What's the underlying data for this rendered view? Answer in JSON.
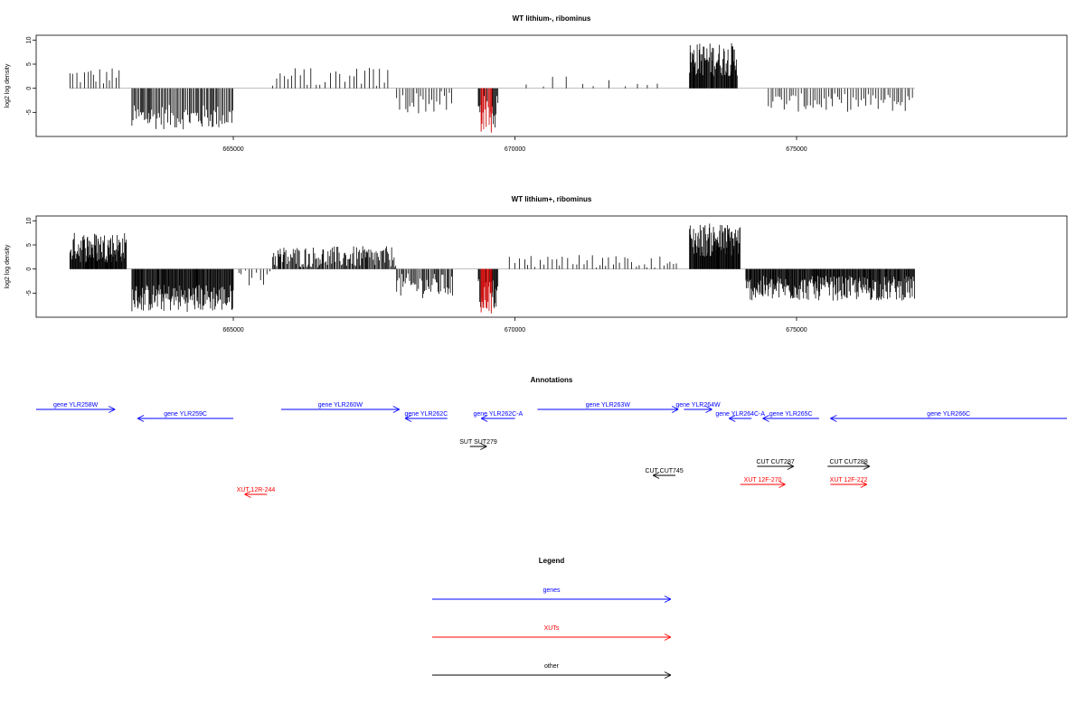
{
  "colors": {
    "gene": "#0000ff",
    "xut": "#ff0000",
    "other": "#000000",
    "highlight": "#cc0000",
    "baseline": "#999999"
  },
  "chart_data": [
    {
      "type": "bar",
      "title": "WT lithium-, ribominus",
      "ylabel": "log2 log density",
      "xlim": [
        661500,
        679800
      ],
      "ylim": [
        -10,
        11
      ],
      "x_ticks": [
        665000,
        670000,
        675000
      ],
      "x_tick_labels": [
        "665000",
        "670000",
        "675000"
      ],
      "y_ticks": [
        10,
        5,
        0,
        -5
      ],
      "y_tick_labels": [
        "10",
        "5",
        "0",
        "-5"
      ],
      "highlight_range": [
        669400,
        669600
      ],
      "segments": [
        {
          "start": 662100,
          "end": 663000,
          "level": 2.5,
          "var": 1.2,
          "step": 55
        },
        {
          "start": 663200,
          "end": 665000,
          "level": -6,
          "var": 1.6,
          "step": 22
        },
        {
          "start": 665700,
          "end": 667800,
          "level": 2.2,
          "var": 1.4,
          "step": 70
        },
        {
          "start": 667900,
          "end": 668900,
          "level": -3,
          "var": 1.5,
          "step": 45
        },
        {
          "start": 669350,
          "end": 669700,
          "level": -5,
          "var": 2.2,
          "step": 14
        },
        {
          "start": 670200,
          "end": 672700,
          "level": 1.5,
          "var": 0.8,
          "step": 260
        },
        {
          "start": 673100,
          "end": 673950,
          "level": 6,
          "var": 2.2,
          "step": 11
        },
        {
          "start": 674500,
          "end": 677100,
          "level": -3,
          "var": 1.2,
          "step": 40
        }
      ]
    },
    {
      "type": "bar",
      "title": "WT lithium+, ribominus",
      "ylabel": "log2 log density",
      "xlim": [
        661500,
        679800
      ],
      "ylim": [
        -10,
        11
      ],
      "x_ticks": [
        665000,
        670000,
        675000
      ],
      "x_tick_labels": [
        "665000",
        "670000",
        "675000"
      ],
      "y_ticks": [
        10,
        5,
        0,
        -5
      ],
      "y_tick_labels": [
        "10",
        "5",
        "0",
        "-5"
      ],
      "highlight_range": [
        669400,
        669600
      ],
      "segments": [
        {
          "start": 662100,
          "end": 663100,
          "level": 4.5,
          "var": 2.0,
          "step": 10
        },
        {
          "start": 663200,
          "end": 665000,
          "level": -6,
          "var": 1.8,
          "step": 12
        },
        {
          "start": 665100,
          "end": 665650,
          "level": -1.5,
          "var": 1.2,
          "step": 60
        },
        {
          "start": 665700,
          "end": 667900,
          "level": 2.5,
          "var": 1.4,
          "step": 18
        },
        {
          "start": 667900,
          "end": 668900,
          "level": -3.5,
          "var": 1.6,
          "step": 22
        },
        {
          "start": 669350,
          "end": 669700,
          "level": -5.5,
          "var": 2.2,
          "step": 12
        },
        {
          "start": 669900,
          "end": 672900,
          "level": 1.5,
          "var": 1.0,
          "step": 70
        },
        {
          "start": 673100,
          "end": 674000,
          "level": 6,
          "var": 2.2,
          "step": 10
        },
        {
          "start": 674100,
          "end": 677100,
          "level": -4,
          "var": 1.6,
          "step": 12
        }
      ]
    }
  ],
  "annotations": {
    "title": "Annotations",
    "items": [
      {
        "label": "gene YLR258W",
        "kind": "gene",
        "start": 661500,
        "end": 662900,
        "strand": "+",
        "row": 0
      },
      {
        "label": "gene YLR259C",
        "kind": "gene",
        "start": 663300,
        "end": 665000,
        "strand": "-",
        "row": 1
      },
      {
        "label": "gene YLR260W",
        "kind": "gene",
        "start": 665850,
        "end": 667950,
        "strand": "+",
        "row": 0
      },
      {
        "label": "gene YLR262C",
        "kind": "gene",
        "start": 668050,
        "end": 668800,
        "strand": "-",
        "row": 1
      },
      {
        "label": "gene YLR262C-A",
        "kind": "gene",
        "start": 669400,
        "end": 670000,
        "strand": "-",
        "row": 1
      },
      {
        "label": "gene YLR263W",
        "kind": "gene",
        "start": 670400,
        "end": 672900,
        "strand": "+",
        "row": 0
      },
      {
        "label": "gene YLR264W",
        "kind": "gene",
        "start": 673000,
        "end": 673500,
        "strand": "+",
        "row": 0
      },
      {
        "label": "gene YLR264C-A",
        "kind": "gene",
        "start": 673800,
        "end": 674200,
        "strand": "-",
        "row": 1
      },
      {
        "label": "gene YLR265C",
        "kind": "gene",
        "start": 674400,
        "end": 675400,
        "strand": "-",
        "row": 1
      },
      {
        "label": "gene YLR266C",
        "kind": "gene",
        "start": 675600,
        "end": 679800,
        "strand": "-",
        "row": 1
      },
      {
        "label": "SUT SUT279",
        "kind": "other",
        "start": 669200,
        "end": 669500,
        "strand": "+",
        "row": 3
      },
      {
        "label": "CUT CUT287",
        "kind": "other",
        "start": 674300,
        "end": 674950,
        "strand": "+",
        "row": 5
      },
      {
        "label": "CUT CUT288",
        "kind": "other",
        "start": 675550,
        "end": 676300,
        "strand": "+",
        "row": 5
      },
      {
        "label": "CUT CUT745",
        "kind": "other",
        "start": 672450,
        "end": 672850,
        "strand": "-",
        "row": 6
      },
      {
        "label": "XUT 12F-270",
        "kind": "xut",
        "start": 674000,
        "end": 674800,
        "strand": "+",
        "row": 7
      },
      {
        "label": "XUT 12F-272",
        "kind": "xut",
        "start": 675600,
        "end": 676250,
        "strand": "+",
        "row": 7
      },
      {
        "label": "XUT 12R-244",
        "kind": "xut",
        "start": 665200,
        "end": 665600,
        "strand": "-",
        "row": 8
      }
    ]
  },
  "legend": {
    "title": "Legend",
    "items": [
      {
        "label": "genes",
        "kind": "gene"
      },
      {
        "label": "XUTs",
        "kind": "xut"
      },
      {
        "label": "other",
        "kind": "other"
      }
    ]
  }
}
